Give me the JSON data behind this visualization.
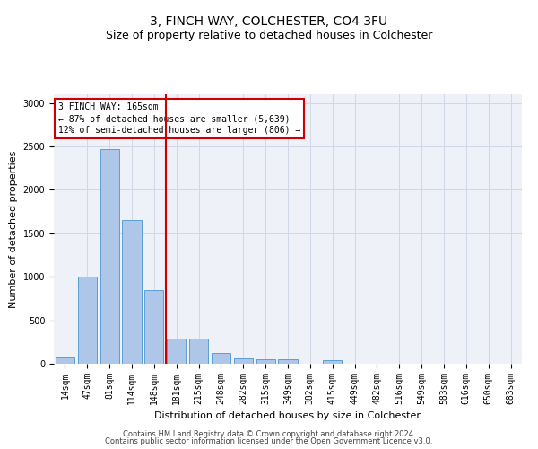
{
  "title1": "3, FINCH WAY, COLCHESTER, CO4 3FU",
  "title2": "Size of property relative to detached houses in Colchester",
  "xlabel": "Distribution of detached houses by size in Colchester",
  "ylabel": "Number of detached properties",
  "footer1": "Contains HM Land Registry data © Crown copyright and database right 2024.",
  "footer2": "Contains public sector information licensed under the Open Government Licence v3.0.",
  "categories": [
    "14sqm",
    "47sqm",
    "81sqm",
    "114sqm",
    "148sqm",
    "181sqm",
    "215sqm",
    "248sqm",
    "282sqm",
    "315sqm",
    "349sqm",
    "382sqm",
    "415sqm",
    "449sqm",
    "482sqm",
    "516sqm",
    "549sqm",
    "583sqm",
    "616sqm",
    "650sqm",
    "683sqm"
  ],
  "values": [
    70,
    1000,
    2470,
    1650,
    850,
    290,
    290,
    120,
    65,
    55,
    55,
    0,
    45,
    0,
    0,
    0,
    0,
    0,
    0,
    0,
    0
  ],
  "bar_color": "#aec6e8",
  "bar_edge_color": "#5a9fd4",
  "annotation_text": "3 FINCH WAY: 165sqm\n← 87% of detached houses are smaller (5,639)\n12% of semi-detached houses are larger (806) →",
  "annotation_box_color": "#ffffff",
  "annotation_box_edge_color": "#cc0000",
  "vline_color": "#cc0000",
  "ylim": [
    0,
    3100
  ],
  "grid_color": "#d0d8e8",
  "bg_color": "#eef2f8",
  "title1_fontsize": 10,
  "title2_fontsize": 9,
  "xlabel_fontsize": 8,
  "ylabel_fontsize": 8,
  "tick_fontsize": 7,
  "annotation_fontsize": 7,
  "footer_fontsize": 6
}
